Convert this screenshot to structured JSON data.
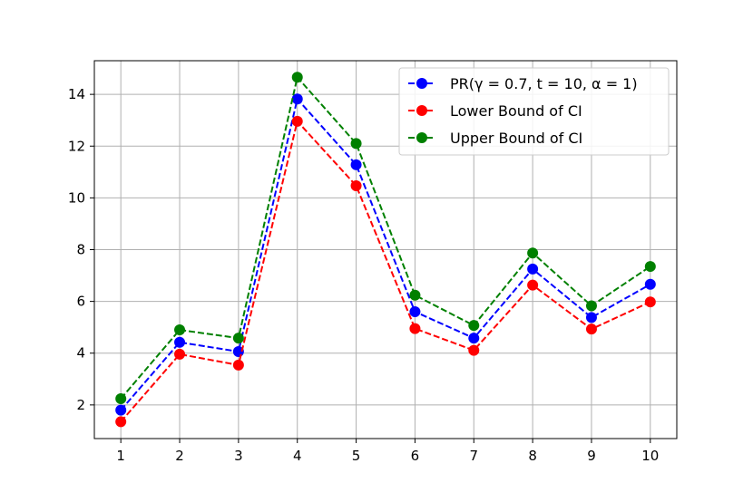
{
  "chart_data": {
    "type": "line",
    "title": "",
    "xlabel": "",
    "ylabel": "",
    "x": [
      1,
      2,
      3,
      4,
      5,
      6,
      7,
      8,
      9,
      10
    ],
    "xlim": [
      0.55,
      10.45
    ],
    "ylim": [
      0.7,
      15.3
    ],
    "xticks": [
      "1",
      "2",
      "3",
      "4",
      "5",
      "6",
      "7",
      "8",
      "9",
      "10"
    ],
    "yticks": [
      "2",
      "4",
      "6",
      "8",
      "10",
      "12",
      "14"
    ],
    "grid": true,
    "legend_position": "top-right",
    "series": [
      {
        "name": "PR(γ = 0.7, t = 10, α = 1)",
        "color": "#0000ff",
        "linestyle": "dashed",
        "marker": "circle",
        "values": [
          1.8,
          4.42,
          4.06,
          13.82,
          11.28,
          5.6,
          4.58,
          7.25,
          5.38,
          6.66
        ]
      },
      {
        "name": "Lower Bound of CI",
        "color": "#ff0000",
        "linestyle": "dashed",
        "marker": "circle",
        "values": [
          1.35,
          3.96,
          3.54,
          12.96,
          10.47,
          4.95,
          4.11,
          6.63,
          4.93,
          5.98
        ]
      },
      {
        "name": "Upper Bound of CI",
        "color": "#008000",
        "linestyle": "dashed",
        "marker": "circle",
        "values": [
          2.24,
          4.9,
          4.58,
          14.66,
          12.1,
          6.24,
          5.07,
          7.87,
          5.83,
          7.35
        ]
      }
    ]
  }
}
